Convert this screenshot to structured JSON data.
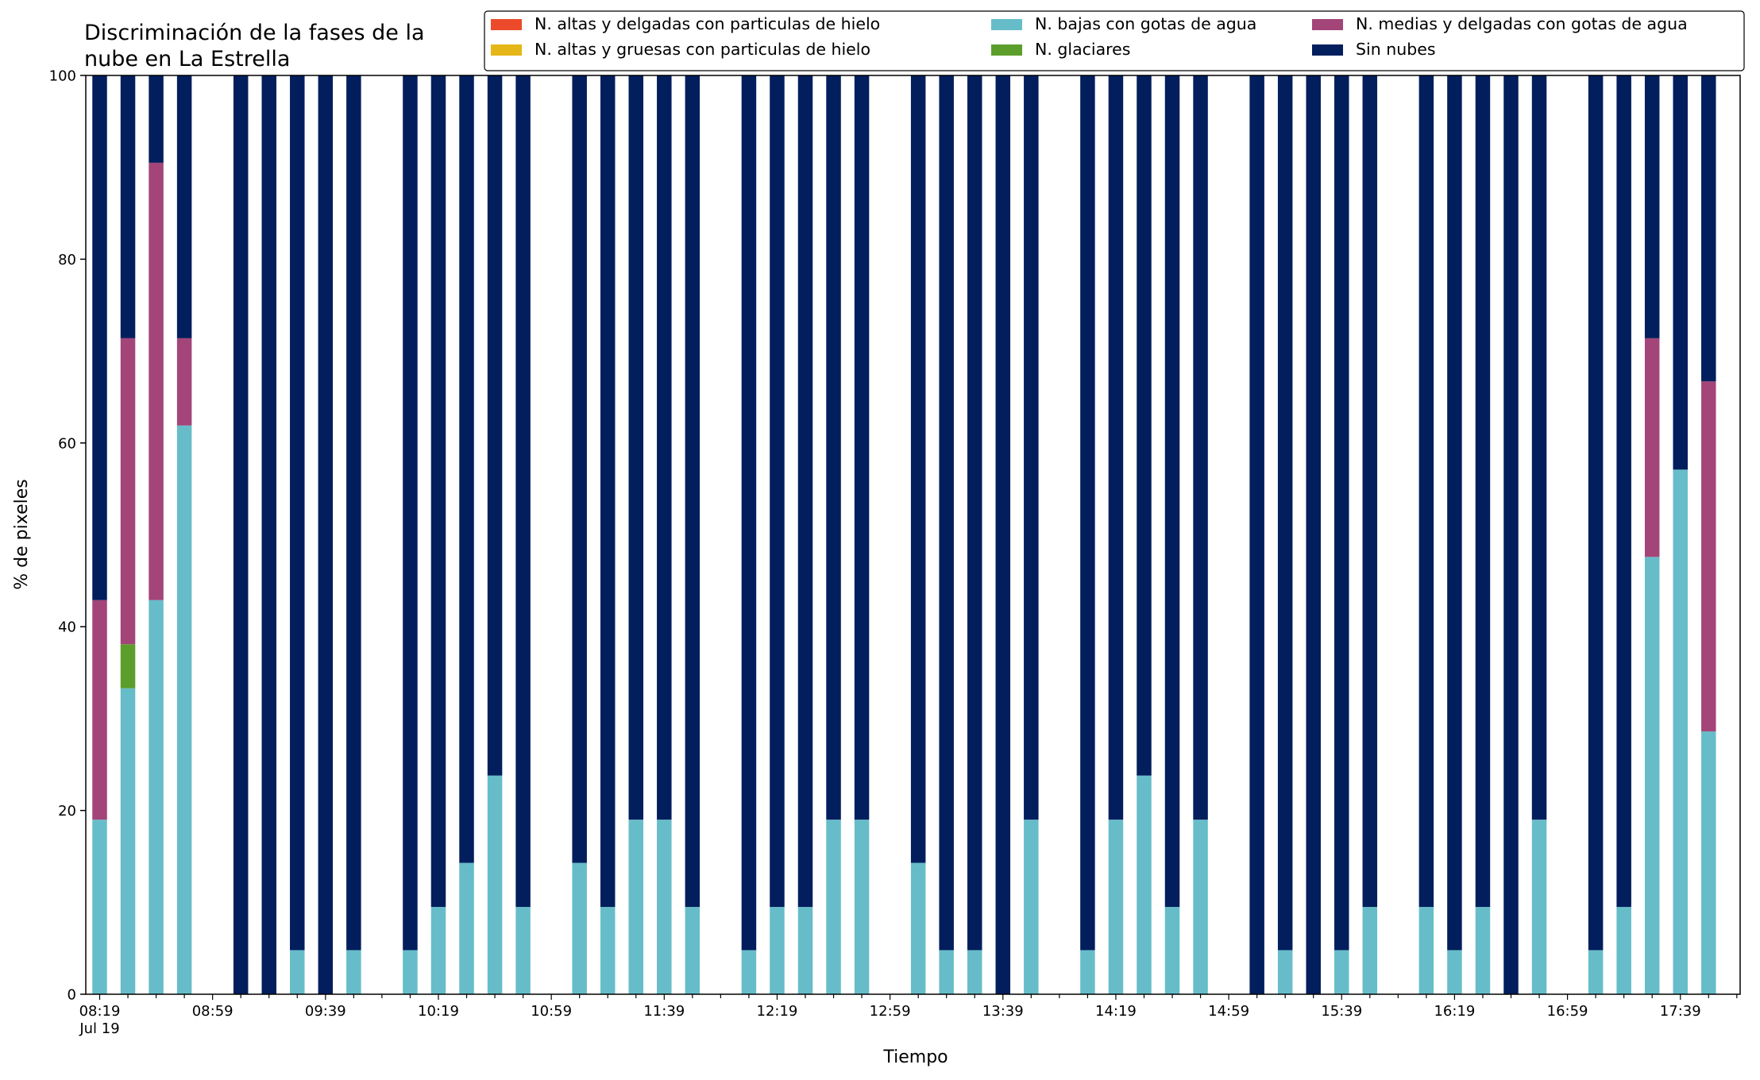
{
  "chart_data": {
    "type": "bar",
    "stacked": true,
    "title": [
      "Discriminación de la fases de la",
      "nube en La Estrella"
    ],
    "xlabel": "Tiempo",
    "ylabel": "% de pixeles",
    "ylim": [
      0,
      100
    ],
    "yticks": [
      0,
      20,
      40,
      60,
      80,
      100
    ],
    "grid": false,
    "legend_placement": "top-right",
    "x_start": "08:19",
    "x_step_minutes": 10,
    "x_count": 59,
    "x_tick_labels": [
      {
        "index": 0,
        "label": "08:19",
        "sublabel": "Jul 19"
      },
      {
        "index": 4,
        "label": "08:59"
      },
      {
        "index": 8,
        "label": "09:39"
      },
      {
        "index": 12,
        "label": "10:19"
      },
      {
        "index": 16,
        "label": "10:59"
      },
      {
        "index": 20,
        "label": "11:39"
      },
      {
        "index": 24,
        "label": "12:19"
      },
      {
        "index": 28,
        "label": "12:59"
      },
      {
        "index": 32,
        "label": "13:39"
      },
      {
        "index": 36,
        "label": "14:19"
      },
      {
        "index": 40,
        "label": "14:59"
      },
      {
        "index": 44,
        "label": "15:39"
      },
      {
        "index": 48,
        "label": "16:19"
      },
      {
        "index": 52,
        "label": "16:59"
      },
      {
        "index": 56,
        "label": "17:39"
      }
    ],
    "series": [
      {
        "name": "N. altas y delgadas con particulas de hielo",
        "color": "#ec4a2a",
        "values": []
      },
      {
        "name": "N. altas y gruesas con particulas de hielo",
        "color": "#e5b617",
        "values": []
      },
      {
        "name": "N. bajas con gotas de agua",
        "color": "#66bdc9",
        "values": []
      },
      {
        "name": "N. glaciares",
        "color": "#5c9e2b",
        "values": []
      },
      {
        "name": "N. medias y delgadas con gotas de agua",
        "color": "#a34579",
        "values": []
      },
      {
        "name": "Sin nubes",
        "color": "#021e5d",
        "values": []
      }
    ],
    "bars": [
      {
        "time": "08:19",
        "N. bajas con gotas de agua": 19.0,
        "N. medias y delgadas con gotas de agua": 23.9,
        "Sin nubes": 57.1
      },
      {
        "time": "08:29",
        "N. bajas con gotas de agua": 33.3,
        "N. glaciares": 4.8,
        "N. medias y delgadas con gotas de agua": 33.3,
        "Sin nubes": 28.6
      },
      {
        "time": "08:39",
        "N. bajas con gotas de agua": 42.9,
        "N. medias y delgadas con gotas de agua": 47.6,
        "Sin nubes": 9.5
      },
      {
        "time": "08:49",
        "N. bajas con gotas de agua": 61.9,
        "N. medias y delgadas con gotas de agua": 9.5,
        "Sin nubes": 28.6
      },
      {
        "time": "09:09",
        "Sin nubes": 100
      },
      {
        "time": "09:19",
        "Sin nubes": 100
      },
      {
        "time": "09:29",
        "N. bajas con gotas de agua": 4.8,
        "Sin nubes": 95.2
      },
      {
        "time": "09:39",
        "Sin nubes": 100
      },
      {
        "time": "09:49",
        "N. bajas con gotas de agua": 4.8,
        "Sin nubes": 95.2
      },
      {
        "time": "10:09",
        "N. bajas con gotas de agua": 4.8,
        "Sin nubes": 95.2
      },
      {
        "time": "10:19",
        "N. bajas con gotas de agua": 9.5,
        "Sin nubes": 90.5
      },
      {
        "time": "10:29",
        "N. bajas con gotas de agua": 14.3,
        "Sin nubes": 85.7
      },
      {
        "time": "10:39",
        "N. bajas con gotas de agua": 23.8,
        "Sin nubes": 76.2
      },
      {
        "time": "10:49",
        "N. bajas con gotas de agua": 9.5,
        "Sin nubes": 90.5
      },
      {
        "time": "11:09",
        "N. bajas con gotas de agua": 14.3,
        "Sin nubes": 85.7
      },
      {
        "time": "11:19",
        "N. bajas con gotas de agua": 9.5,
        "Sin nubes": 90.5
      },
      {
        "time": "11:29",
        "N. bajas con gotas de agua": 19.0,
        "Sin nubes": 81.0
      },
      {
        "time": "11:39",
        "N. bajas con gotas de agua": 19.0,
        "Sin nubes": 81.0
      },
      {
        "time": "11:49",
        "N. bajas con gotas de agua": 9.5,
        "Sin nubes": 90.5
      },
      {
        "time": "12:09",
        "N. bajas con gotas de agua": 4.8,
        "Sin nubes": 95.2
      },
      {
        "time": "12:19",
        "N. bajas con gotas de agua": 9.5,
        "Sin nubes": 90.5
      },
      {
        "time": "12:29",
        "N. bajas con gotas de agua": 9.5,
        "Sin nubes": 90.5
      },
      {
        "time": "12:39",
        "N. bajas con gotas de agua": 19.0,
        "Sin nubes": 81.0
      },
      {
        "time": "12:49",
        "N. bajas con gotas de agua": 19.0,
        "Sin nubes": 81.0
      },
      {
        "time": "13:09",
        "N. bajas con gotas de agua": 14.3,
        "Sin nubes": 85.7
      },
      {
        "time": "13:19",
        "N. bajas con gotas de agua": 4.8,
        "Sin nubes": 95.2
      },
      {
        "time": "13:29",
        "N. bajas con gotas de agua": 4.8,
        "Sin nubes": 95.2
      },
      {
        "time": "13:39",
        "Sin nubes": 100
      },
      {
        "time": "13:49",
        "N. bajas con gotas de agua": 19.0,
        "Sin nubes": 81.0
      },
      {
        "time": "14:09",
        "N. bajas con gotas de agua": 4.8,
        "Sin nubes": 95.2
      },
      {
        "time": "14:19",
        "N. bajas con gotas de agua": 19.0,
        "Sin nubes": 81.0
      },
      {
        "time": "14:29",
        "N. bajas con gotas de agua": 23.8,
        "Sin nubes": 76.2
      },
      {
        "time": "14:39",
        "N. bajas con gotas de agua": 9.5,
        "Sin nubes": 90.5
      },
      {
        "time": "14:49",
        "N. bajas con gotas de agua": 19.0,
        "Sin nubes": 81.0
      },
      {
        "time": "15:09",
        "Sin nubes": 100
      },
      {
        "time": "15:19",
        "N. bajas con gotas de agua": 4.8,
        "Sin nubes": 95.2
      },
      {
        "time": "15:29",
        "Sin nubes": 100
      },
      {
        "time": "15:39",
        "N. bajas con gotas de agua": 4.8,
        "Sin nubes": 95.2
      },
      {
        "time": "15:49",
        "N. bajas con gotas de agua": 9.5,
        "Sin nubes": 90.5
      },
      {
        "time": "16:09",
        "N. bajas con gotas de agua": 9.5,
        "Sin nubes": 90.5
      },
      {
        "time": "16:19",
        "N. bajas con gotas de agua": 4.8,
        "Sin nubes": 95.2
      },
      {
        "time": "16:29",
        "N. bajas con gotas de agua": 9.5,
        "Sin nubes": 90.5
      },
      {
        "time": "16:39",
        "Sin nubes": 100
      },
      {
        "time": "16:49",
        "N. bajas con gotas de agua": 19.0,
        "Sin nubes": 81.0
      },
      {
        "time": "17:09",
        "N. bajas con gotas de agua": 4.8,
        "Sin nubes": 95.2
      },
      {
        "time": "17:19",
        "N. bajas con gotas de agua": 9.5,
        "Sin nubes": 90.5
      },
      {
        "time": "17:29",
        "N. bajas con gotas de agua": 47.6,
        "N. medias y delgadas con gotas de agua": 23.8,
        "Sin nubes": 28.6
      },
      {
        "time": "17:39",
        "N. bajas con gotas de agua": 57.1,
        "Sin nubes": 42.9
      },
      {
        "time": "17:49",
        "N. bajas con gotas de agua": 28.6,
        "N. medias y delgadas con gotas de agua": 38.1,
        "Sin nubes": 33.3
      }
    ]
  }
}
